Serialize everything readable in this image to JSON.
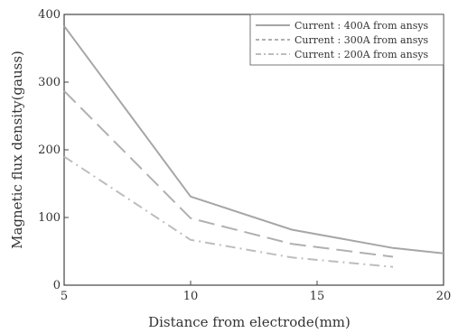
{
  "chart_data": {
    "type": "line",
    "xlabel": "Distance from electrode(mm)",
    "ylabel": "Magnetic flux density(gauss)",
    "xlim": [
      5,
      20
    ],
    "ylim": [
      0,
      400
    ],
    "x_ticks": [
      5,
      10,
      15,
      20
    ],
    "y_ticks": [
      0,
      100,
      200,
      300,
      400
    ],
    "grid": false,
    "legend_position": "top-right",
    "series": [
      {
        "name": "Current : 400A from ansys",
        "color": "#a6a6a6",
        "dash": "solid",
        "points": [
          [
            5,
            383
          ],
          [
            10,
            131
          ],
          [
            14,
            82
          ],
          [
            18,
            55
          ],
          [
            20,
            47
          ]
        ]
      },
      {
        "name": "Current : 300A from ansys",
        "color": "#b0b0b0",
        "dash": "dashed",
        "points": [
          [
            5,
            287
          ],
          [
            10,
            99
          ],
          [
            14,
            61
          ],
          [
            18,
            42
          ]
        ]
      },
      {
        "name": "Current : 200A from ansys",
        "color": "#bdbdbd",
        "dash": "dashdot",
        "points": [
          [
            5,
            190
          ],
          [
            10,
            67
          ],
          [
            14,
            41
          ],
          [
            18,
            27
          ]
        ]
      }
    ]
  }
}
